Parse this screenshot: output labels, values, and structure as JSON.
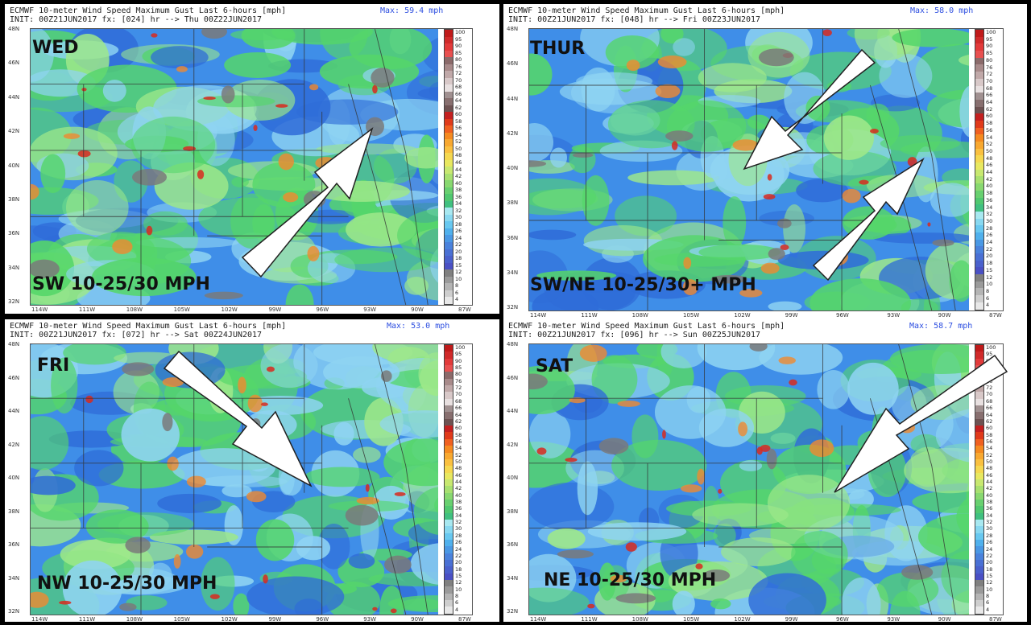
{
  "panels": [
    {
      "model": "ECMWF",
      "title": "10-meter Wind Speed Maximum Gust Last 6-hours [mph]",
      "init": "INIT: 00Z21JUN2017 fx: [024] hr --> Thu 00Z22JUN2017",
      "max": "Max: 59.4 mph",
      "day": "WED",
      "wind": "SW 10-25/30 MPH",
      "arrow_direction": "to northeast"
    },
    {
      "model": "ECMWF",
      "title": "10-meter Wind Speed Maximum Gust Last 6-hours [mph]",
      "init": "INIT: 00Z21JUN2017 fx: [048] hr --> Fri 00Z23JUN2017",
      "max": "Max: 58.0 mph",
      "day": "THUR",
      "wind": "SW/NE 10-25/30+ MPH",
      "arrow_direction": "converging"
    },
    {
      "model": "ECMWF",
      "title": "10-meter Wind Speed Maximum Gust Last 6-hours [mph]",
      "init": "INIT: 00Z21JUN2017 fx: [072] hr --> Sat 00Z24JUN2017",
      "max": "Max: 53.0 mph",
      "day": "FRI",
      "wind": "NW 10-25/30 MPH",
      "arrow_direction": "to southeast"
    },
    {
      "model": "ECMWF",
      "title": "10-meter Wind Speed Maximum Gust Last 6-hours [mph]",
      "init": "INIT: 00Z21JUN2017 fx: [096] hr --> Sun 00Z25JUN2017",
      "max": "Max: 58.7 mph",
      "day": "SAT",
      "wind": "NE 10-25/30 MPH",
      "arrow_direction": "to southwest"
    }
  ],
  "lat_labels": [
    "48N",
    "46N",
    "44N",
    "42N",
    "40N",
    "38N",
    "36N",
    "34N",
    "32N"
  ],
  "lon_labels": [
    "114W",
    "111W",
    "108W",
    "105W",
    "102W",
    "99W",
    "96W",
    "93W",
    "90W",
    "87W"
  ],
  "colorbar": {
    "labels": [
      "100",
      "95",
      "90",
      "85",
      "80",
      "76",
      "72",
      "70",
      "68",
      "66",
      "64",
      "62",
      "60",
      "58",
      "56",
      "54",
      "52",
      "50",
      "48",
      "46",
      "44",
      "42",
      "40",
      "38",
      "36",
      "34",
      "32",
      "30",
      "28",
      "26",
      "24",
      "22",
      "20",
      "18",
      "15",
      "12",
      "10",
      "8",
      "6",
      "4"
    ],
    "colors": [
      "#c01a1a",
      "#d02a2a",
      "#e23a3a",
      "#e85050",
      "#8b6a6a",
      "#a88a8a",
      "#c0a8a8",
      "#d8c8c8",
      "#e8e0e0",
      "#a09090",
      "#886f6f",
      "#6e5252",
      "#c42020",
      "#e03a1a",
      "#f06020",
      "#f58a20",
      "#f8a830",
      "#fac040",
      "#f5d850",
      "#e8e860",
      "#c8e870",
      "#a8e070",
      "#88d870",
      "#68d070",
      "#50c870",
      "#40c080",
      "#a8e8f0",
      "#88d8f0",
      "#68c8f0",
      "#50b0ec",
      "#4a98e4",
      "#4a82dc",
      "#4a70d4",
      "#4a60cc",
      "#4a50c4",
      "#808080",
      "#9a9a9a",
      "#b4b4b4",
      "#cecece",
      "#e8e8e8"
    ]
  },
  "colors": {
    "green": "#55d66a",
    "light_green": "#9ee88a",
    "blue": "#3f8ee8",
    "light_blue": "#8fd4f2",
    "dark_blue": "#2f6cd8",
    "orange": "#f08a30",
    "red": "#d82a1e",
    "gray": "#7a7a7a"
  }
}
